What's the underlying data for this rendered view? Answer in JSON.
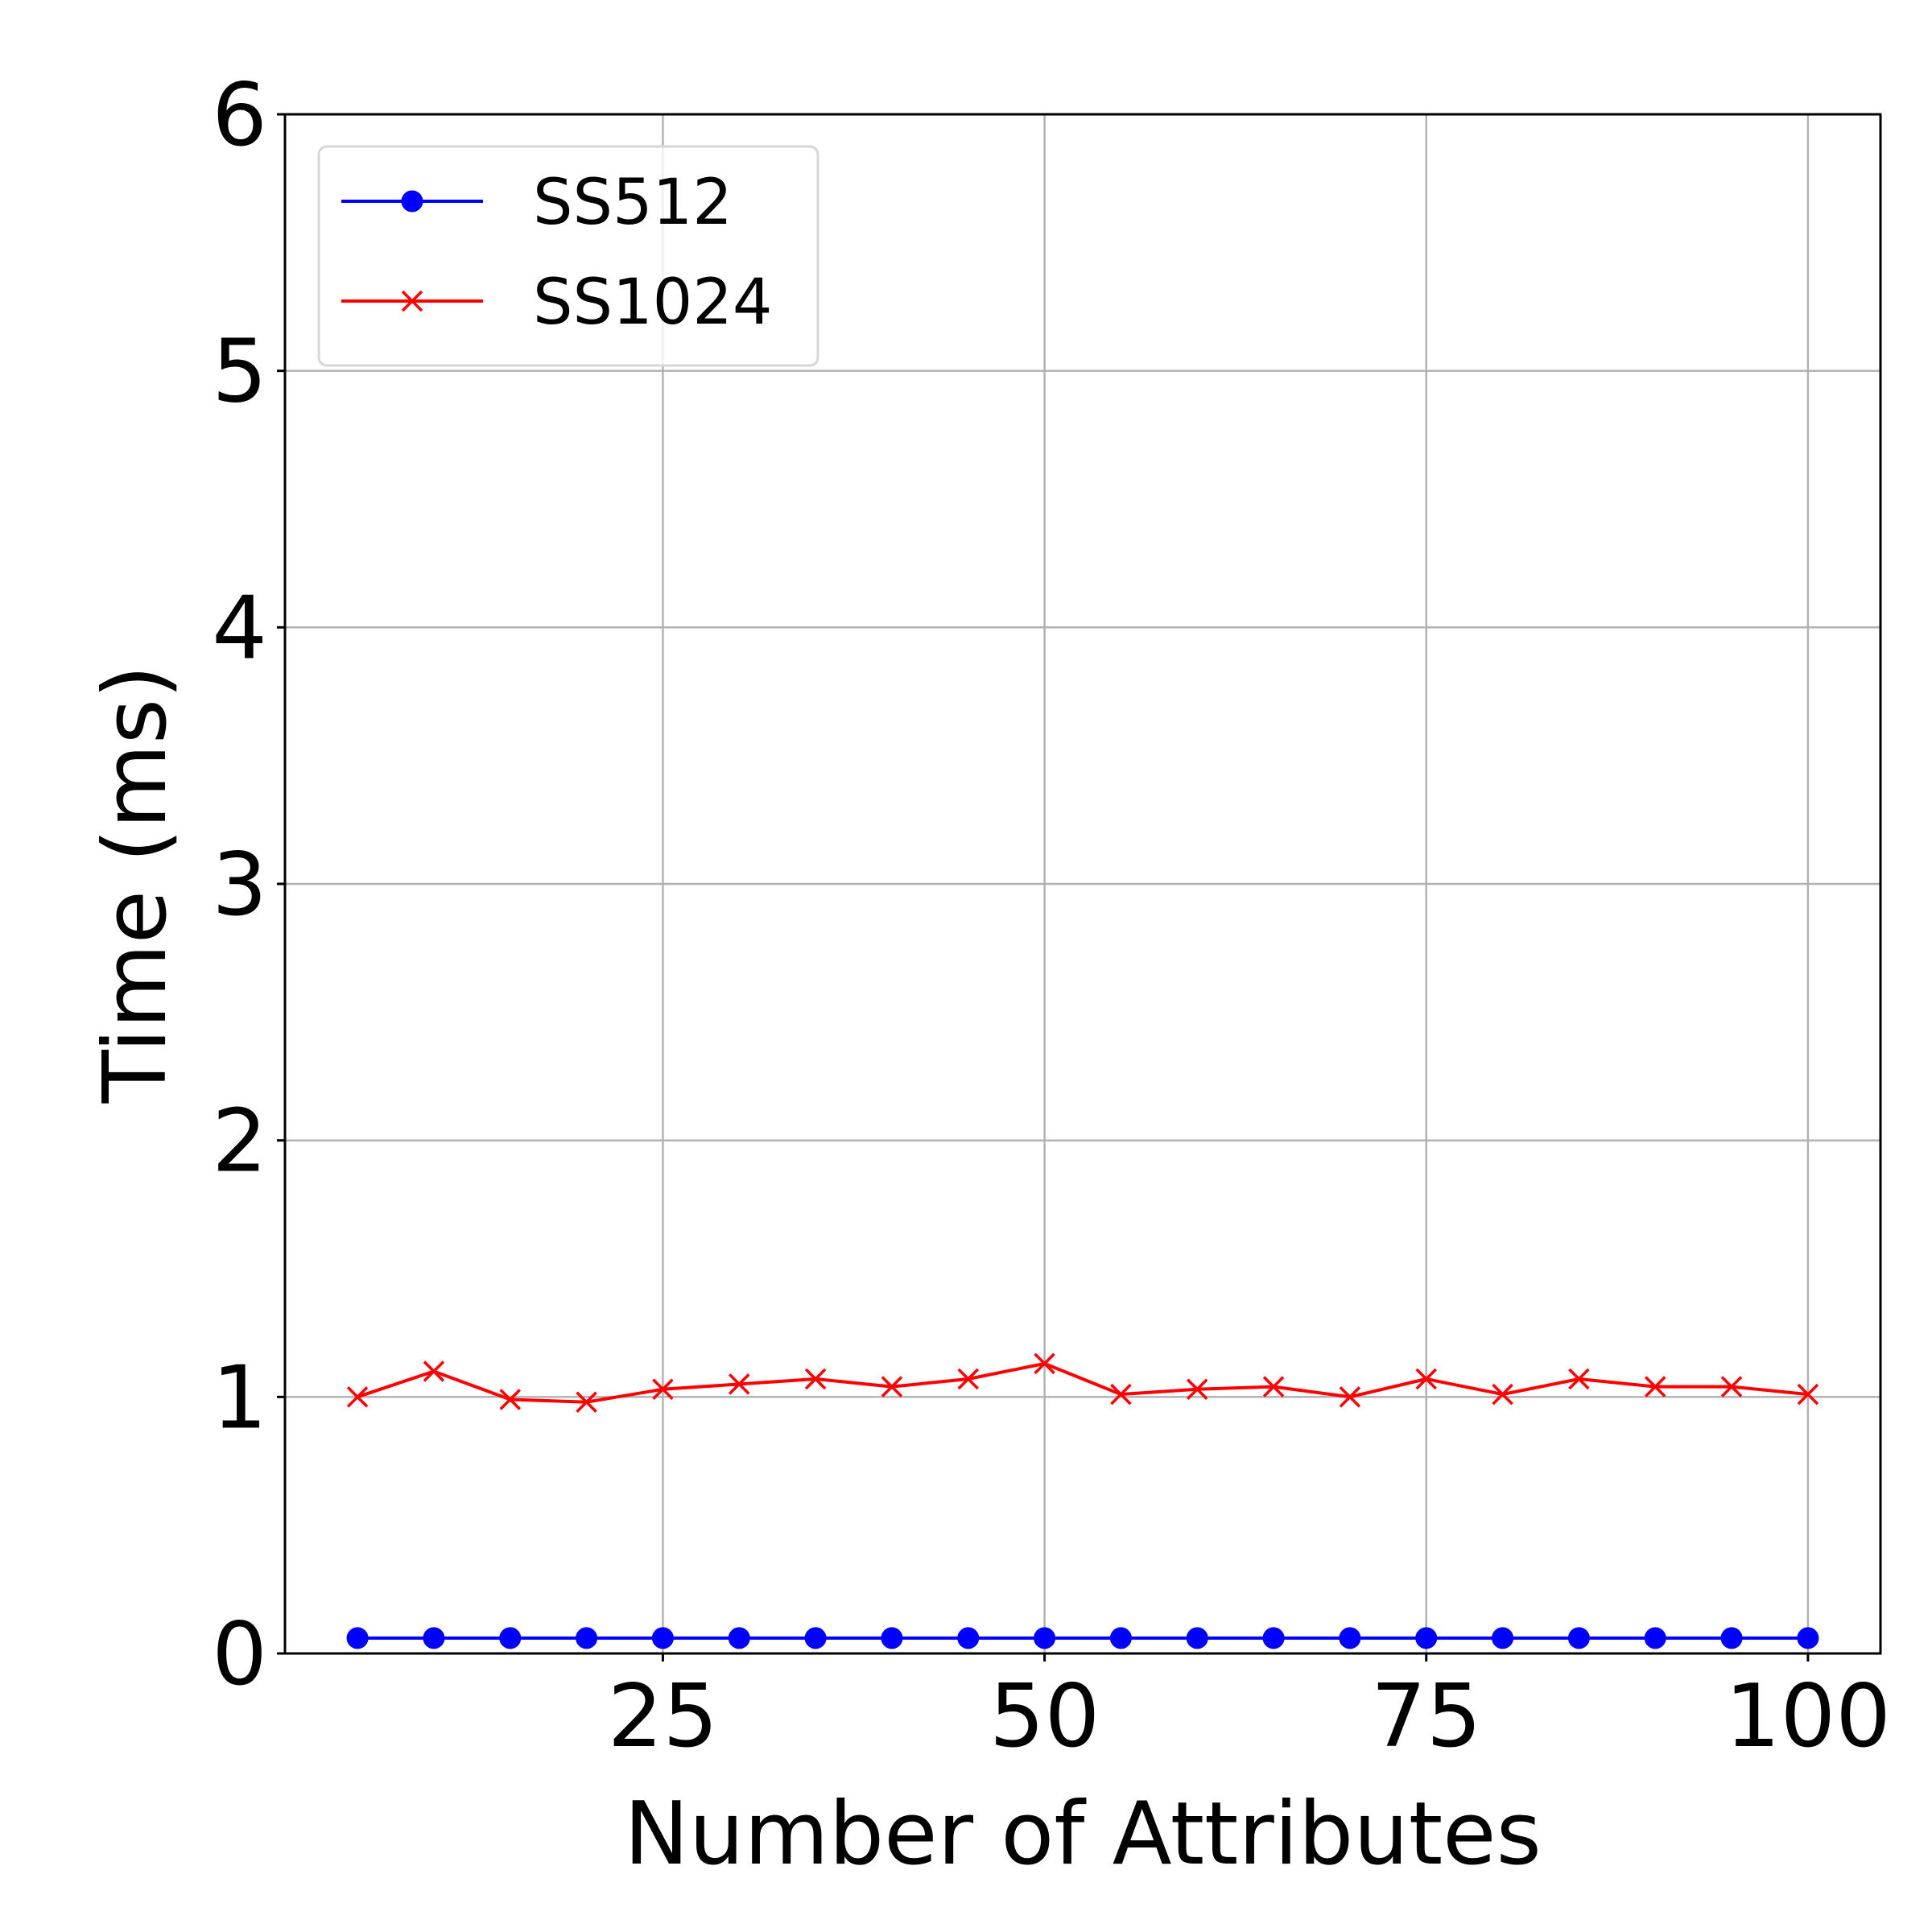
{
  "chart_data": {
    "type": "line",
    "title": "",
    "xlabel": "Number of Attributes",
    "ylabel": "Time (ms)",
    "xlim": [
      0.25,
      104.75
    ],
    "ylim": [
      0,
      6
    ],
    "x_ticks": [
      25,
      50,
      75,
      100
    ],
    "y_ticks": [
      0,
      1,
      2,
      3,
      4,
      5,
      6
    ],
    "grid": true,
    "legend_position": "top-left",
    "x": [
      5,
      10,
      15,
      20,
      25,
      30,
      35,
      40,
      45,
      50,
      55,
      60,
      65,
      70,
      75,
      80,
      85,
      90,
      95,
      100
    ],
    "series": [
      {
        "name": "SS512",
        "color": "#0000ff",
        "marker": "circle",
        "values": [
          0.06,
          0.06,
          0.06,
          0.06,
          0.06,
          0.06,
          0.06,
          0.06,
          0.06,
          0.06,
          0.06,
          0.06,
          0.06,
          0.06,
          0.06,
          0.06,
          0.06,
          0.06,
          0.06,
          0.06
        ]
      },
      {
        "name": "SS1024",
        "color": "#ff0000",
        "marker": "x",
        "values": [
          1.0,
          1.1,
          0.99,
          0.98,
          1.03,
          1.05,
          1.07,
          1.04,
          1.07,
          1.13,
          1.01,
          1.03,
          1.04,
          1.0,
          1.07,
          1.01,
          1.07,
          1.04,
          1.04,
          1.01
        ]
      }
    ]
  }
}
